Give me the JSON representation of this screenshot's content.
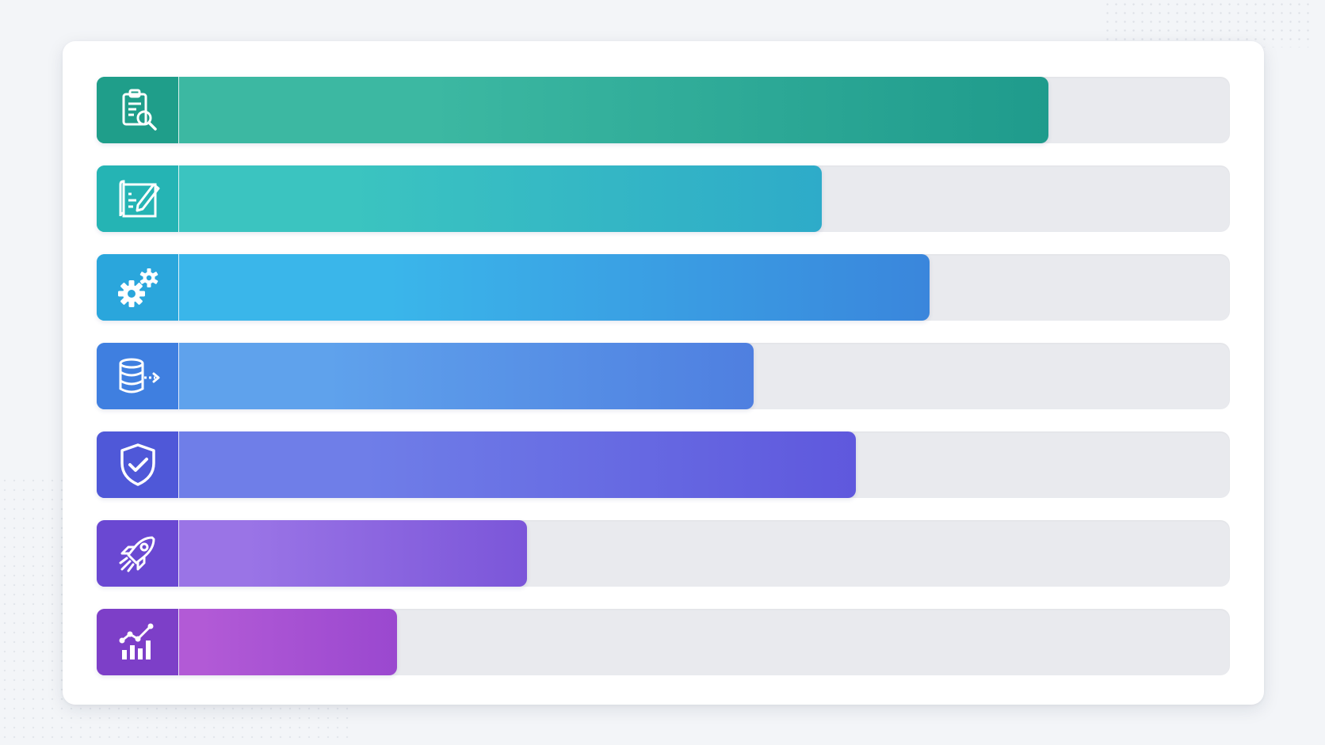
{
  "chart_data": {
    "type": "bar",
    "orientation": "horizontal",
    "categories": [
      "",
      "",
      "",
      "",
      "",
      "",
      ""
    ],
    "values": [
      84,
      64,
      73.5,
      58,
      67,
      38,
      26.5
    ],
    "xlim": [
      0,
      100
    ],
    "grid": false,
    "legend": "none",
    "icons": [
      "clipboard-search-icon",
      "blueprint-pencil-icon",
      "gears-icon",
      "database-transfer-icon",
      "shield-check-icon",
      "rocket-icon",
      "growth-chart-icon"
    ],
    "colors": [
      [
        "#3cb8a2",
        "#1f9b8c"
      ],
      [
        "#3bc4c0",
        "#2eabc9"
      ],
      [
        "#3ab6ea",
        "#3a86dc"
      ],
      [
        "#5fa2ec",
        "#4f7fe0"
      ],
      [
        "#6f7ee8",
        "#5f58dd"
      ],
      [
        "#9a74e6",
        "#7b56d9"
      ],
      [
        "#b25ad6",
        "#9a48cf"
      ]
    ],
    "icon_colors": [
      "#1f9e8a",
      "#25b4b4",
      "#2aa6dc",
      "#3f7fe0",
      "#4f58d8",
      "#6a48d2",
      "#7d3fc8"
    ]
  }
}
